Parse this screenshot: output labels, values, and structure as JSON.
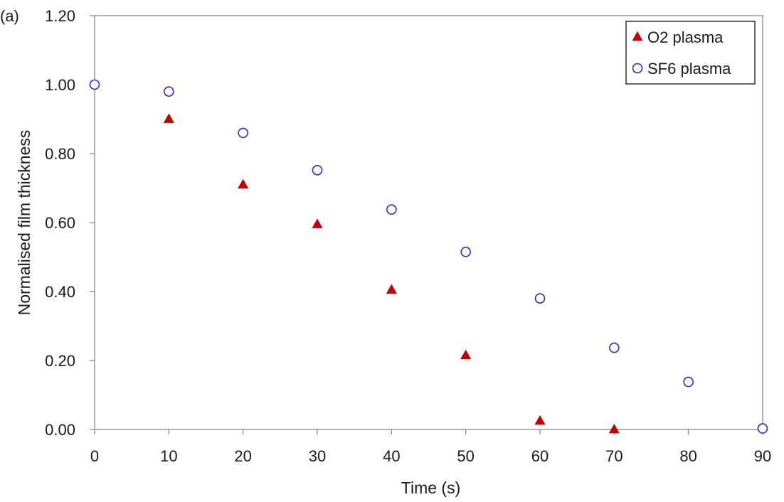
{
  "panel_label": "(a)",
  "chart_data": {
    "type": "scatter",
    "xlabel": "Time (s)",
    "ylabel": "Normalised film thickness",
    "xlim": [
      0,
      90
    ],
    "ylim": [
      0,
      1.2
    ],
    "x_ticks": [
      "0",
      "10",
      "20",
      "30",
      "40",
      "50",
      "60",
      "70",
      "80",
      "90"
    ],
    "y_ticks": [
      "0.00",
      "0.20",
      "0.40",
      "0.60",
      "0.80",
      "1.00",
      "1.20"
    ],
    "grid": false,
    "legend_position": "top-right",
    "series": [
      {
        "name": "O2 plasma",
        "marker": "filled-triangle",
        "color": "#c00000",
        "points": [
          {
            "x": 10,
            "y": 0.9
          },
          {
            "x": 20,
            "y": 0.71
          },
          {
            "x": 30,
            "y": 0.595
          },
          {
            "x": 40,
            "y": 0.405
          },
          {
            "x": 50,
            "y": 0.215
          },
          {
            "x": 60,
            "y": 0.025
          },
          {
            "x": 70,
            "y": 0.0
          }
        ]
      },
      {
        "name": "SF6 plasma",
        "marker": "open-circle",
        "color": "#2a2ae0",
        "points": [
          {
            "x": 0,
            "y": 1.0
          },
          {
            "x": 10,
            "y": 0.98
          },
          {
            "x": 20,
            "y": 0.86
          },
          {
            "x": 30,
            "y": 0.752
          },
          {
            "x": 40,
            "y": 0.638
          },
          {
            "x": 50,
            "y": 0.515
          },
          {
            "x": 60,
            "y": 0.38
          },
          {
            "x": 70,
            "y": 0.237
          },
          {
            "x": 80,
            "y": 0.138
          },
          {
            "x": 90,
            "y": 0.003
          }
        ]
      }
    ]
  }
}
